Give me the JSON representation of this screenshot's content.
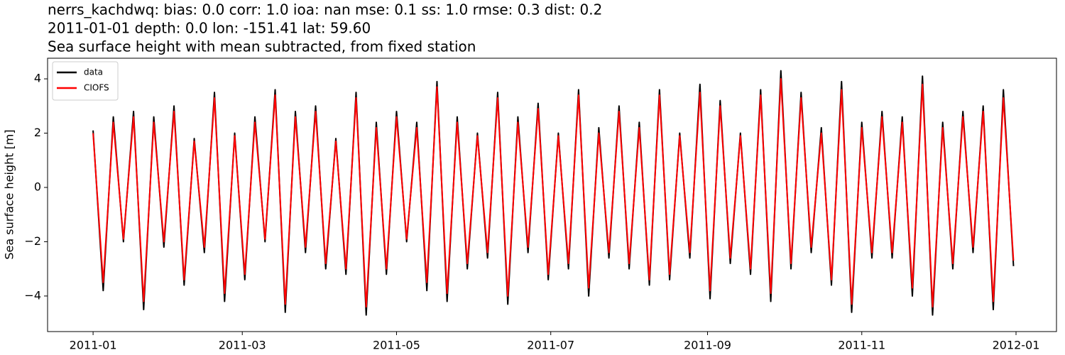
{
  "chart_data": {
    "type": "line",
    "title": [
      "nerrs_kachdwq: bias: 0.0  corr: 1.0  ioa: nan  mse: 0.1  ss: 1.0  rmse: 0.3  dist: 0.2",
      "2011-01-01 depth: 0.0 lon: -151.41 lat: 59.60",
      "Sea surface height with mean subtracted, from fixed station"
    ],
    "ylabel": "Sea surface height [m]",
    "x": [
      0,
      4,
      8,
      12,
      16,
      20,
      24,
      28,
      32,
      36,
      40,
      44,
      48,
      52,
      56,
      60,
      64,
      68,
      72,
      76,
      80,
      84,
      88,
      92,
      96,
      100,
      104,
      108,
      112,
      116,
      120,
      124,
      128,
      132,
      136,
      140,
      144,
      148,
      152,
      156,
      160,
      164,
      168,
      172,
      176,
      180,
      184,
      188,
      192,
      196,
      200,
      204,
      208,
      212,
      216,
      220,
      224,
      228,
      232,
      236,
      240,
      244,
      248,
      252,
      256,
      260,
      264,
      268,
      272,
      276,
      280,
      284,
      288,
      292,
      296,
      300,
      304,
      308,
      312,
      316,
      320,
      324,
      328,
      332,
      336,
      340,
      344,
      348,
      352,
      356,
      360,
      364
    ],
    "series": [
      {
        "name": "data",
        "color": "#000000",
        "values": [
          2.1,
          -3.8,
          2.6,
          -2.0,
          2.8,
          -4.5,
          2.6,
          -2.2,
          3.0,
          -3.6,
          1.8,
          -2.4,
          3.5,
          -4.2,
          2.0,
          -3.4,
          2.6,
          -2.0,
          3.6,
          -4.6,
          2.8,
          -2.4,
          3.0,
          -3.0,
          1.8,
          -3.2,
          3.5,
          -4.7,
          2.4,
          -3.2,
          2.8,
          -2.0,
          2.4,
          -3.8,
          3.9,
          -4.2,
          2.6,
          -3.0,
          2.0,
          -2.6,
          3.5,
          -4.3,
          2.6,
          -2.4,
          3.1,
          -3.4,
          2.0,
          -3.0,
          3.6,
          -4.0,
          2.2,
          -2.6,
          3.0,
          -3.0,
          2.4,
          -3.6,
          3.6,
          -3.4,
          2.0,
          -2.6,
          3.8,
          -4.1,
          3.2,
          -2.8,
          2.0,
          -3.2,
          3.6,
          -4.2,
          4.3,
          -3.0,
          3.5,
          -2.4,
          2.2,
          -3.6,
          3.9,
          -4.6,
          2.4,
          -2.6,
          2.8,
          -2.6,
          2.6,
          -4.0,
          4.1,
          -4.7,
          2.4,
          -3.0,
          2.8,
          -2.4,
          3.0,
          -4.5,
          3.6,
          -2.9
        ]
      },
      {
        "name": "CIOFS",
        "color": "#ff0000",
        "values": [
          2.0,
          -3.5,
          2.4,
          -1.9,
          2.6,
          -4.2,
          2.4,
          -2.0,
          2.8,
          -3.4,
          1.7,
          -2.2,
          3.3,
          -3.9,
          1.9,
          -3.2,
          2.4,
          -1.9,
          3.4,
          -4.3,
          2.6,
          -2.2,
          2.8,
          -2.8,
          1.7,
          -3.0,
          3.3,
          -4.4,
          2.2,
          -3.0,
          2.6,
          -1.9,
          2.2,
          -3.5,
          3.7,
          -3.9,
          2.4,
          -2.8,
          1.9,
          -2.4,
          3.3,
          -4.0,
          2.4,
          -2.2,
          2.9,
          -3.2,
          1.9,
          -2.8,
          3.4,
          -3.7,
          2.0,
          -2.4,
          2.8,
          -2.8,
          2.2,
          -3.4,
          3.4,
          -3.2,
          1.9,
          -2.4,
          3.5,
          -3.8,
          3.0,
          -2.6,
          1.9,
          -3.0,
          3.4,
          -3.9,
          4.0,
          -2.8,
          3.3,
          -2.2,
          2.0,
          -3.4,
          3.6,
          -4.3,
          2.2,
          -2.4,
          2.6,
          -2.4,
          2.4,
          -3.7,
          3.8,
          -4.4,
          2.2,
          -2.8,
          2.6,
          -2.2,
          2.8,
          -4.2,
          3.3,
          -2.7
        ]
      }
    ],
    "xlim": [
      -18,
      381
    ],
    "xticks": [
      {
        "value": 0,
        "label": "2011-01"
      },
      {
        "value": 59,
        "label": "2011-03"
      },
      {
        "value": 120,
        "label": "2011-05"
      },
      {
        "value": 181,
        "label": "2011-07"
      },
      {
        "value": 243,
        "label": "2011-09"
      },
      {
        "value": 304,
        "label": "2011-11"
      },
      {
        "value": 365,
        "label": "2012-01"
      }
    ],
    "ylim": [
      -5.31,
      4.76
    ],
    "yticks": [
      {
        "value": -4,
        "label": "−4"
      },
      {
        "value": -2,
        "label": "−2"
      },
      0,
      2,
      4
    ],
    "legend": "upper left",
    "grid": false
  }
}
